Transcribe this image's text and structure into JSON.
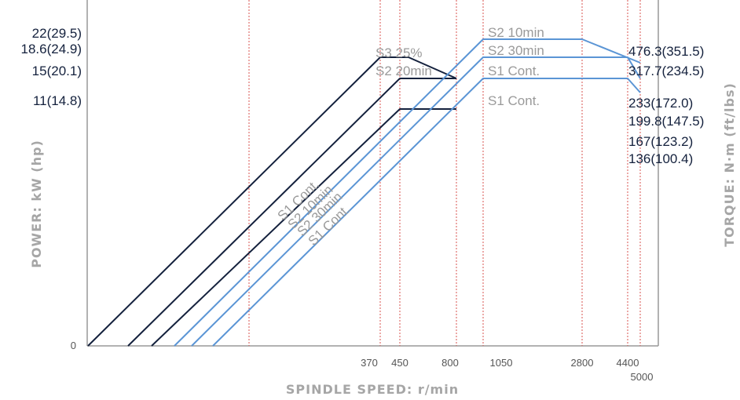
{
  "chart_data": {
    "type": "line",
    "xlabel": "SPINDLE SPEED: r/min",
    "ylabel_left": "POWER: kW (hp)",
    "ylabel_right": "TORQUE: N·m (ft/lbs)",
    "x_ticks": [
      "370",
      "450",
      "800",
      "1050",
      "2800",
      "4400",
      "5000"
    ],
    "y_zero_label": "0",
    "power_labels": [
      "22(29.5)",
      "18.6(24.9)",
      "15(20.1)",
      "11(14.8)"
    ],
    "torque_labels": [
      "476.3(351.5)",
      "317.7(234.5)",
      "233(172.0)",
      "199.8(147.5)",
      "167(123.2)",
      "136(100.4)"
    ],
    "power_series": [
      {
        "name": "S3 25%",
        "points": [
          [
            0,
            0
          ],
          [
            370,
            22
          ],
          [
            450,
            22
          ],
          [
            800,
            18.6
          ]
        ]
      },
      {
        "name": "S2 20min",
        "points": [
          [
            0,
            0
          ],
          [
            450,
            18.6
          ],
          [
            800,
            18.6
          ]
        ]
      },
      {
        "name": "S1 Cont.",
        "points": [
          [
            0,
            0
          ],
          [
            450,
            15
          ],
          [
            800,
            15
          ]
        ]
      }
    ],
    "torque_series": [
      {
        "name": "S2 10min",
        "points": [
          [
            0,
            0
          ],
          [
            1050,
            476.3
          ],
          [
            2800,
            476.3
          ],
          [
            5000,
            317.7
          ]
        ]
      },
      {
        "name": "S2 30min",
        "points": [
          [
            0,
            0
          ],
          [
            1050,
            317.7
          ],
          [
            4400,
            317.7
          ],
          [
            5000,
            233
          ]
        ]
      },
      {
        "name": "S1 Cont.",
        "points": [
          [
            0,
            0
          ],
          [
            1050,
            233
          ],
          [
            4400,
            233
          ],
          [
            5000,
            199.8
          ]
        ]
      }
    ],
    "curve_labels": {
      "s3_25": "S3 25%",
      "s2_20min": "S2 20min",
      "s2_10min": "S2 10min",
      "s2_30min": "S2 30min",
      "s1_cont_a": "S1 Cont.",
      "s1_cont_b": "S1 Cont.",
      "diag_s1_cont_a": "S1 Cont.",
      "diag_s2_10min": "S2 10min",
      "diag_s2_30min": "S2 30min",
      "diag_s1_cont_b": "S1 Cont."
    },
    "colors": {
      "power": "#14213d",
      "torque": "#5b95d5",
      "grid": "#d9534f",
      "axis": "#999999"
    }
  }
}
